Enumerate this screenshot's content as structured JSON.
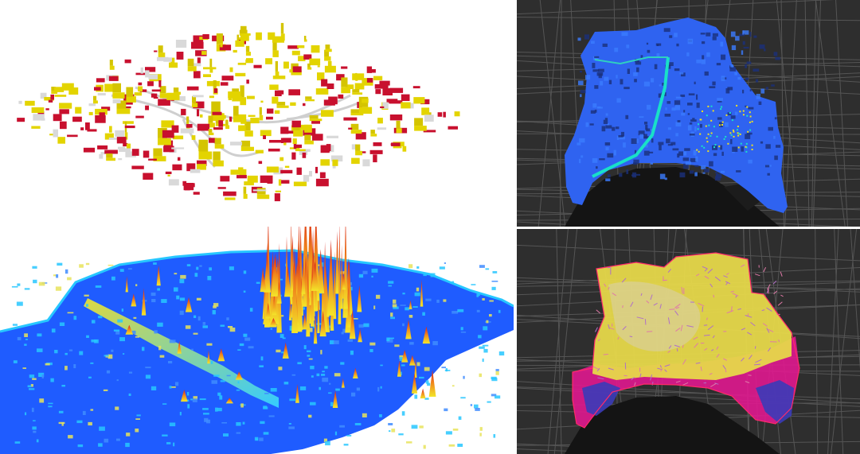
{
  "figure": {
    "panels": [
      {
        "id": "top-left",
        "content": "3d-building-footprints-extruded",
        "colors": [
          "#c8102e",
          "#e3d400",
          "#d9d9d9"
        ]
      },
      {
        "id": "top-right",
        "content": "flow-accumulation-map-on-dark-basemap",
        "colors": [
          "#2a5cff",
          "#19e0c8",
          "#f0e020"
        ]
      },
      {
        "id": "bottom-left",
        "content": "3d-surface-height-map",
        "colors": [
          "#1f5cff",
          "#27c7ff",
          "#f3e62a",
          "#e8251c"
        ]
      },
      {
        "id": "bottom-right",
        "content": "hazard-zone-map-on-dark-basemap",
        "colors": [
          "#e6d84a",
          "#e0188f",
          "#3b3bb8"
        ]
      }
    ],
    "basemap_color": "#2e2e2e"
  }
}
